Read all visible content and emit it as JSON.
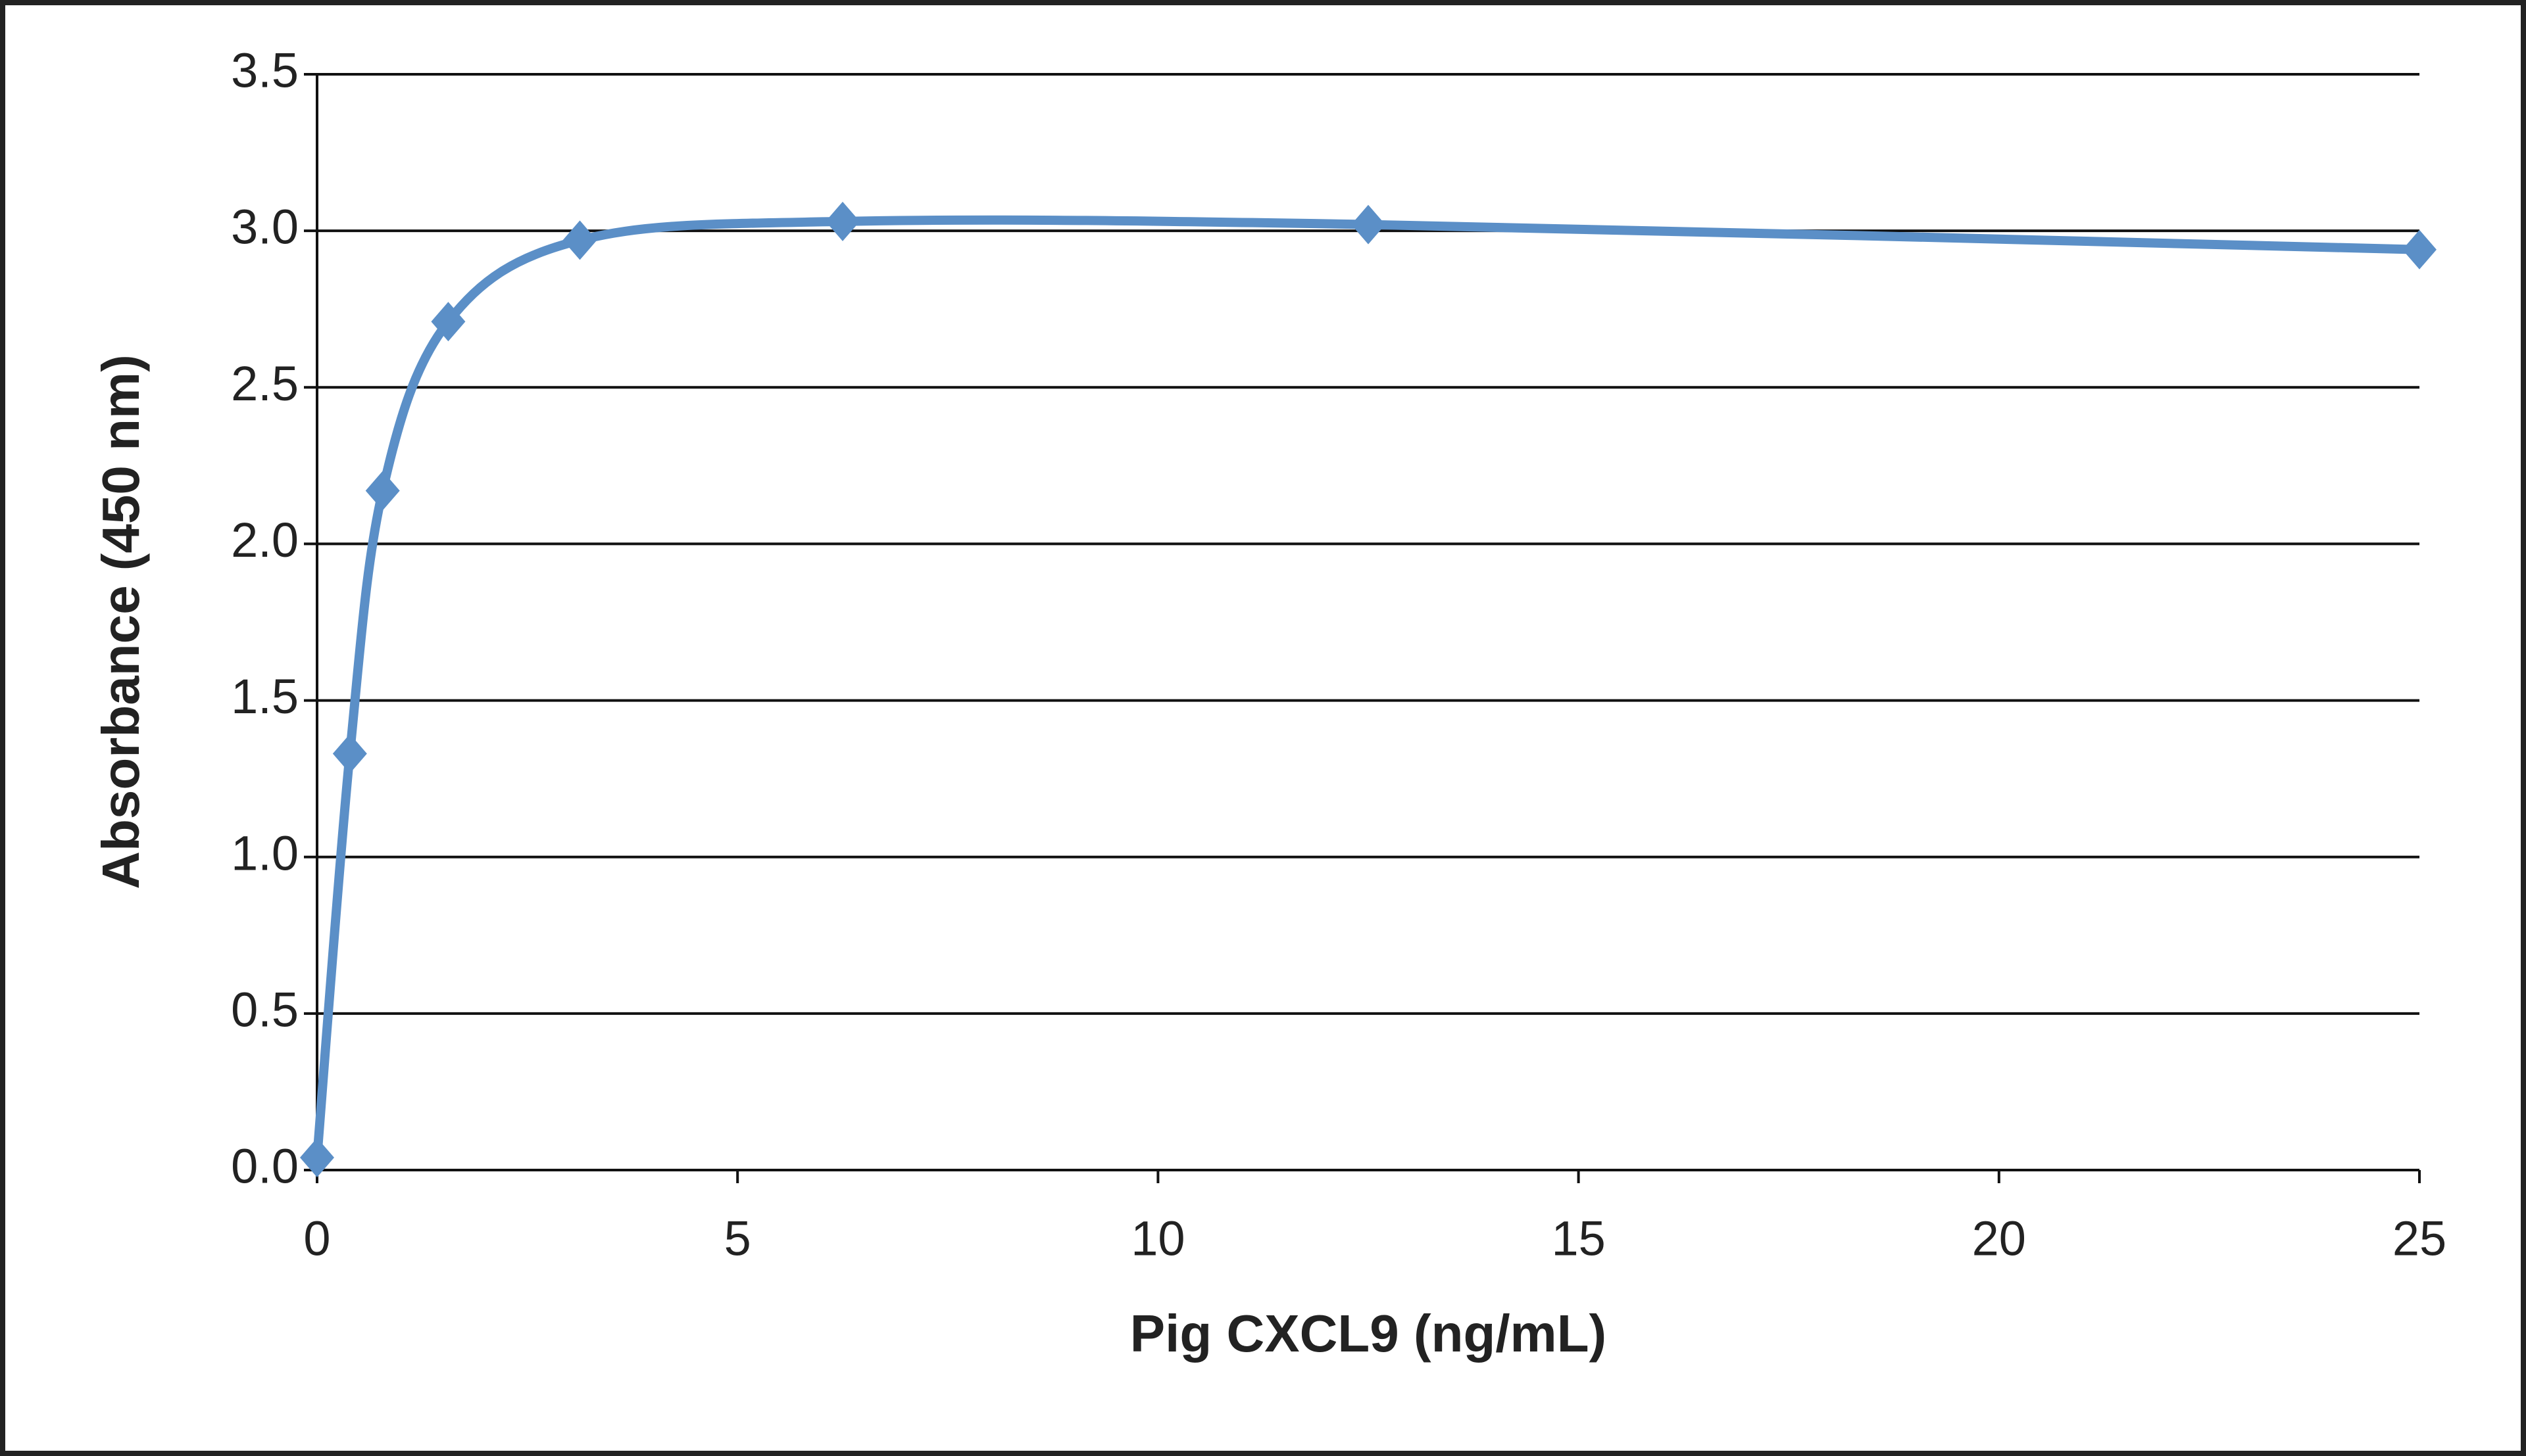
{
  "chart_data": {
    "type": "line",
    "x_label": "Pig CXCL9  (ng/mL)",
    "y_label": "Absorbance  (450 nm)",
    "series": [
      {
        "name": "Pig CXCL9",
        "color": "#5b8fc7",
        "x": [
          0,
          0.39,
          0.78,
          1.56,
          3.125,
          6.25,
          12.5,
          25
        ],
        "values": [
          0.04,
          1.33,
          2.17,
          2.71,
          2.97,
          3.03,
          3.02,
          2.94
        ]
      }
    ],
    "xlim": [
      0,
      25
    ],
    "xticks": [
      0,
      5,
      10,
      15,
      20,
      25
    ],
    "ylim": [
      0,
      3.5
    ],
    "yticks": [
      {
        "value": 0,
        "label": "0.0"
      },
      0.5,
      {
        "value": 1,
        "label": "1.0"
      },
      1.5,
      {
        "value": 2,
        "label": "2.0"
      },
      2.5,
      {
        "value": 3,
        "label": "3.0"
      },
      3.5
    ],
    "grid": true,
    "smooth": true
  }
}
